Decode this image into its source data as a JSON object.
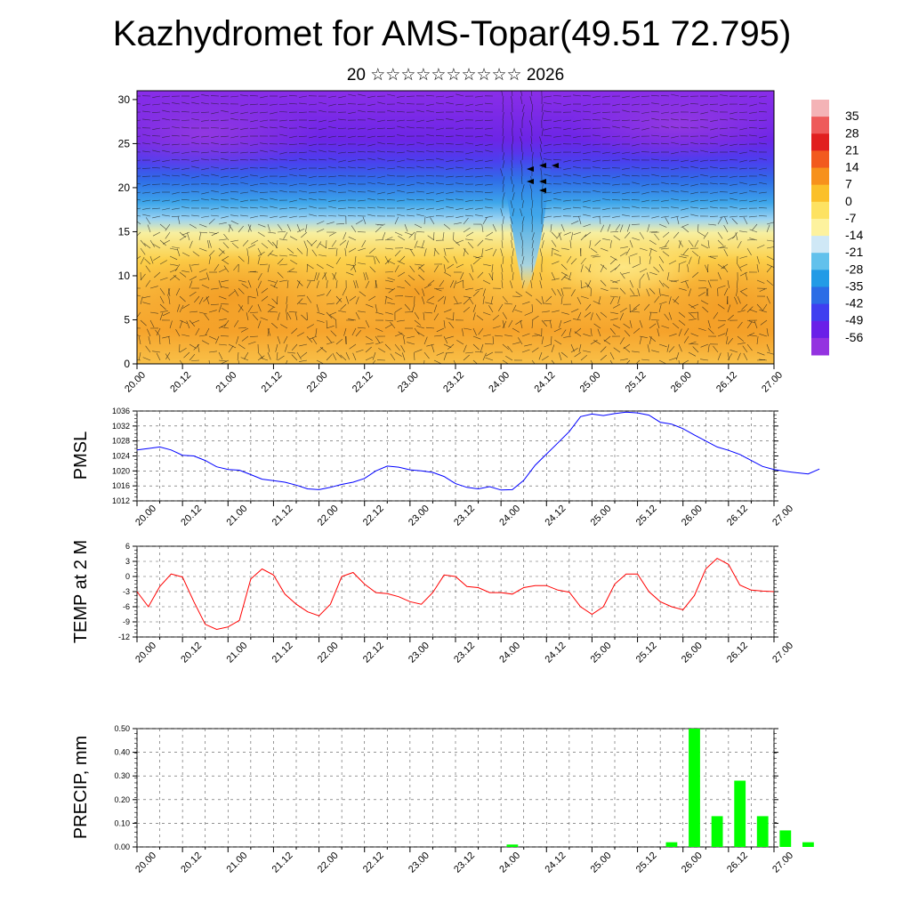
{
  "header": {
    "title": "Kazhydromet for AMS-Topar(49.51 72.795)",
    "subtitle": "20 ☆☆☆☆☆☆☆☆☆☆ 2026"
  },
  "time_labels": [
    "20.00",
    "20.12",
    "21.00",
    "21.12",
    "22.00",
    "22.12",
    "23.00",
    "23.12",
    "24.00",
    "24.12",
    "25.00",
    "25.12",
    "26.00",
    "26.12",
    "27.00"
  ],
  "chart_data": [
    {
      "type": "heatmap",
      "title": "Vertical cross-section (temperature, wind barbs)",
      "x_labels": [
        "20.00",
        "20.12",
        "21.00",
        "21.12",
        "22.00",
        "22.12",
        "23.00",
        "23.12",
        "24.00",
        "24.12",
        "25.00",
        "25.12",
        "26.00",
        "26.12",
        "27.00"
      ],
      "y_ticks": [
        0,
        5,
        10,
        15,
        20,
        25,
        30
      ],
      "ylim": [
        0,
        31
      ],
      "colorbar": {
        "labels": [
          "35",
          "28",
          "21",
          "14",
          "7",
          "0",
          "-7",
          "-14",
          "-21",
          "-28",
          "-35",
          "-42",
          "-49",
          "-56"
        ],
        "colors": [
          "#f4b3b6",
          "#ee5a5a",
          "#e11f1f",
          "#f25a1e",
          "#f7911c",
          "#fbc02a",
          "#fde262",
          "#fdf29e",
          "#cfe8f6",
          "#62c1ec",
          "#229be6",
          "#2b6de6",
          "#3f3ff0",
          "#6a1fe8",
          "#9433e0"
        ]
      }
    },
    {
      "type": "line",
      "ylabel": "PMSL",
      "ylim": [
        1012,
        1036
      ],
      "y_ticks": [
        1012,
        1016,
        1020,
        1024,
        1028,
        1032,
        1036
      ],
      "color": "#0000ff",
      "x_start": 0,
      "x_step": 3,
      "values": [
        1025.6,
        1026,
        1026.4,
        1025.6,
        1024.2,
        1024.0,
        1022.8,
        1021.1,
        1020.4,
        1020.2,
        1019.0,
        1017.8,
        1017.4,
        1017.0,
        1016.2,
        1015.2,
        1015.0,
        1015.6,
        1016.4,
        1017.0,
        1018.0,
        1020.0,
        1021.3,
        1021.0,
        1020.3,
        1020.0,
        1019.6,
        1018.5,
        1016.6,
        1015.6,
        1015.2,
        1015.8,
        1014.9,
        1015.0,
        1017.5,
        1021.5,
        1024.5,
        1027.5,
        1030.5,
        1034.5,
        1035.2,
        1034.8,
        1035.3,
        1035.7,
        1035.5,
        1034.9,
        1033.0,
        1032.5,
        1031.3,
        1029.6,
        1028.0,
        1026.4,
        1025.5,
        1024.4,
        1022.8,
        1021.2,
        1020.4,
        1019.9,
        1019.5,
        1019.2,
        1020.5
      ]
    },
    {
      "type": "line",
      "ylabel": "TEMP at 2 M",
      "ylim": [
        -12,
        6
      ],
      "y_ticks": [
        -12,
        -9,
        -6,
        -3,
        0,
        3,
        6
      ],
      "color": "#ff0000",
      "x_start": 0,
      "x_step": 3,
      "values": [
        -3,
        -6,
        -2,
        0.5,
        -0.1,
        -5,
        -9.5,
        -10.5,
        -10,
        -8.7,
        -0.5,
        1.5,
        0.3,
        -3.5,
        -5.5,
        -7,
        -7.8,
        -5.5,
        0,
        0.8,
        -1.5,
        -3.2,
        -3.4,
        -4,
        -5,
        -5.5,
        -3.2,
        0.3,
        0,
        -2,
        -2.2,
        -3.2,
        -3.2,
        -3.5,
        -2.2,
        -1.8,
        -1.8,
        -2.7,
        -3.1,
        -6,
        -7.5,
        -6,
        -1.5,
        0.5,
        0.5,
        -3,
        -5,
        -6,
        -6.6,
        -3.8,
        1.5,
        3.6,
        2.4,
        -1.7,
        -2.7,
        -2.9,
        -3
      ]
    },
    {
      "type": "bar",
      "ylabel": "PRECIP, mm",
      "ylim": [
        0,
        0.5
      ],
      "y_ticks": [
        "0.00",
        "0.10",
        "0.20",
        "0.30",
        "0.40",
        "0.50"
      ],
      "color": "#00ff00",
      "bars": [
        {
          "t": 33,
          "v": 0.01
        },
        {
          "t": 47,
          "v": 0.02
        },
        {
          "t": 49,
          "v": 0.5
        },
        {
          "t": 51,
          "v": 0.13
        },
        {
          "t": 53,
          "v": 0.28
        },
        {
          "t": 55,
          "v": 0.13
        },
        {
          "t": 57,
          "v": 0.07
        },
        {
          "t": 59,
          "v": 0.02
        }
      ]
    }
  ],
  "axis_labels": {
    "pmsl": "PMSL",
    "temp": "TEMP at 2 M",
    "precip": "PRECIP, mm"
  }
}
